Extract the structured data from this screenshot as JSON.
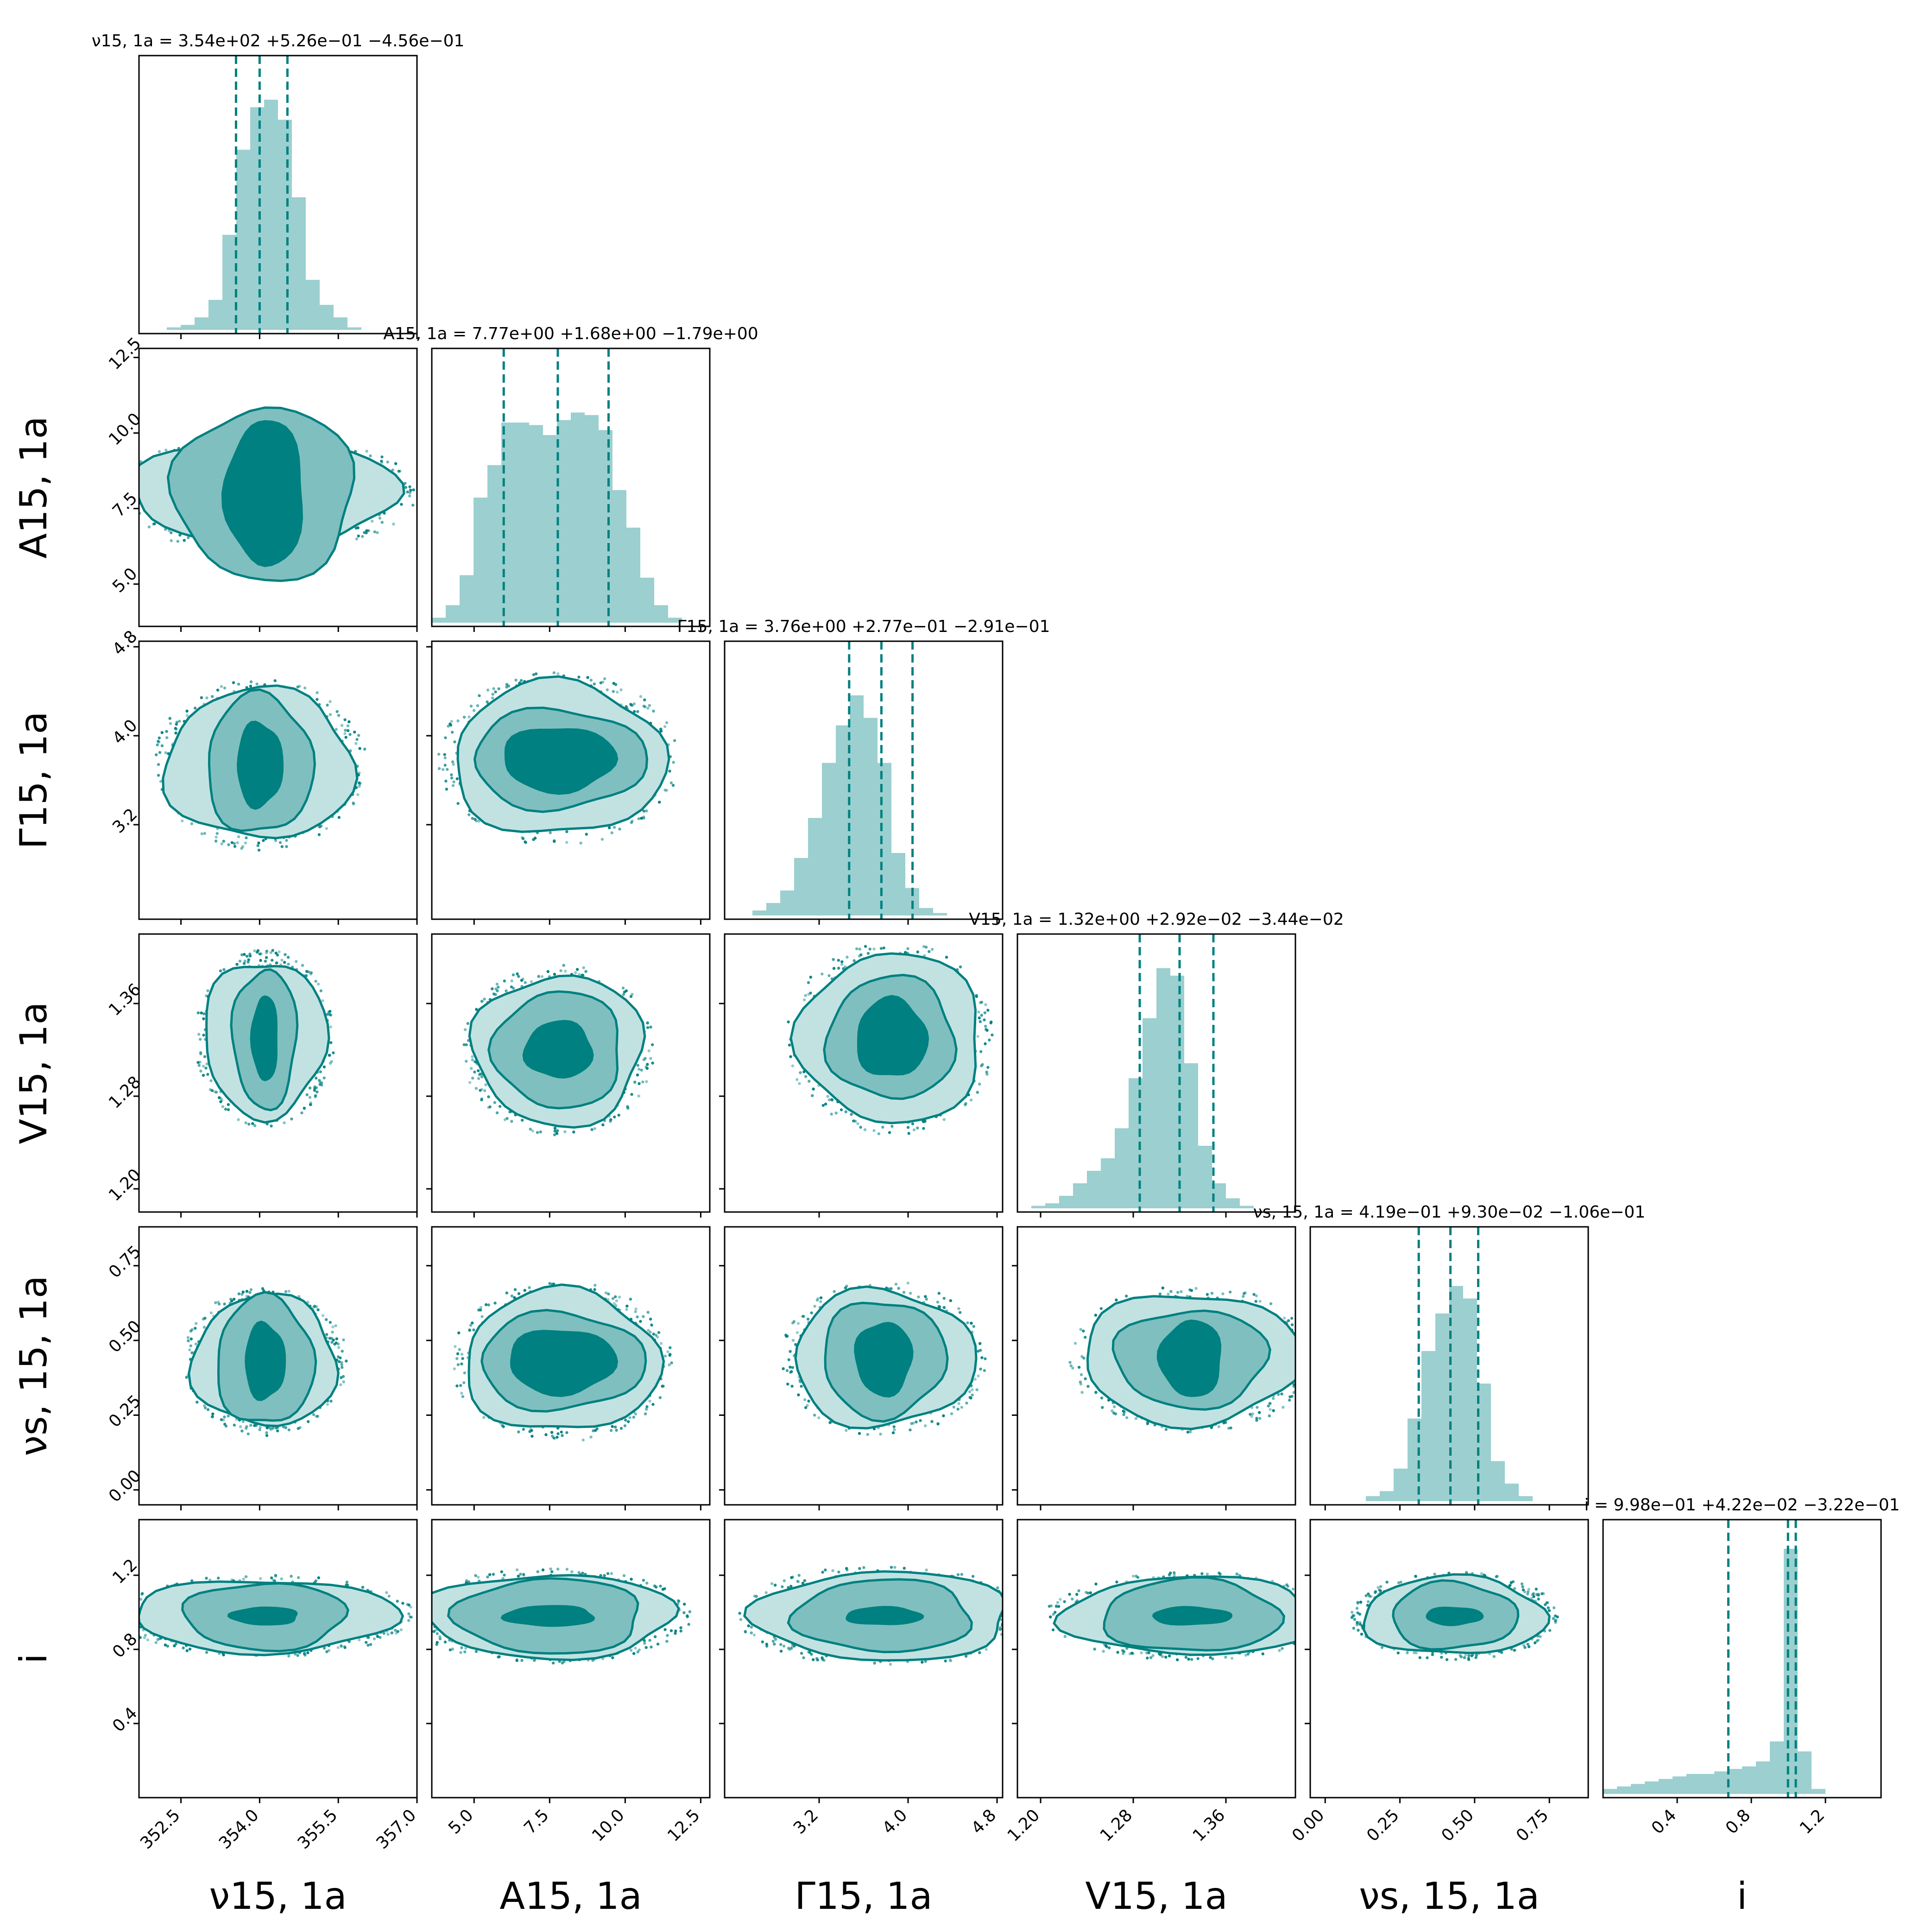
{
  "chart_data": {
    "type": "corner",
    "colors": {
      "accent": "#008080",
      "hist": "#9ccfcf",
      "level1": "#c2e2e2",
      "level2": "#80bfbf",
      "level3": "#008080"
    },
    "params": [
      {
        "id": "nu",
        "label": "ν15, 1a",
        "range": [
          351.7,
          357.0
        ],
        "ticks": [
          "352.5",
          "354.0",
          "355.5",
          "357.0"
        ],
        "tick_values": [
          352.5,
          354.0,
          355.5,
          357.0
        ],
        "title": "ν15, 1a = 3.54e+02 +5.26e−01 −4.56e−01",
        "median": 354.0,
        "lo": 353.55,
        "hi": 354.53
      },
      {
        "id": "A",
        "label": "A15, 1a",
        "range": [
          3.6,
          12.8
        ],
        "ticks": [
          "5.0",
          "7.5",
          "10.0",
          "12.5"
        ],
        "tick_values": [
          5.0,
          7.5,
          10.0,
          12.5
        ],
        "title": "A15, 1a = 7.77e+00 +1.68e+00 −1.79e+00",
        "median": 7.77,
        "lo": 5.98,
        "hi": 9.45
      },
      {
        "id": "Gamma",
        "label": "Γ15, 1a",
        "range": [
          2.35,
          4.85
        ],
        "ticks": [
          "3.2",
          "4.0",
          "4.8"
        ],
        "tick_values": [
          3.2,
          4.0,
          4.8
        ],
        "title": "Γ15, 1a = 3.76e+00 +2.77e−01 −2.91e−01",
        "median": 3.76,
        "lo": 3.47,
        "hi": 4.04
      },
      {
        "id": "V",
        "label": "V15, 1a",
        "range": [
          1.18,
          1.42
        ],
        "ticks": [
          "1.20",
          "1.28",
          "1.36"
        ],
        "tick_values": [
          1.2,
          1.28,
          1.36
        ],
        "title": "V15, 1a = 1.32e+00 +2.92e−02 −3.44e−02",
        "median": 1.32,
        "lo": 1.2856,
        "hi": 1.3492
      },
      {
        "id": "nus",
        "label": "νs, 15, 1a",
        "range": [
          -0.05,
          0.88
        ],
        "ticks": [
          "0.00",
          "0.25",
          "0.50",
          "0.75"
        ],
        "tick_values": [
          0.0,
          0.25,
          0.5,
          0.75
        ],
        "title": "νs, 15, 1a = 4.19e−01 +9.30e−02 −1.06e−01",
        "median": 0.419,
        "lo": 0.313,
        "hi": 0.512
      },
      {
        "id": "i",
        "label": "i",
        "range": [
          0.0,
          1.5
        ],
        "ticks": [
          "0.4",
          "0.8",
          "1.2"
        ],
        "tick_values": [
          0.4,
          0.8,
          1.2
        ],
        "title": "i = 9.98e−01 +4.22e−02 −3.22e−01",
        "median": 0.998,
        "lo": 0.676,
        "hi": 1.04
      }
    ],
    "histograms": [
      {
        "param": "nu",
        "edges_start": 351.7,
        "bin_width": 0.265,
        "counts": [
          0,
          0,
          0.01,
          0.02,
          0.05,
          0.12,
          0.38,
          0.72,
          0.89,
          0.92,
          0.84,
          0.53,
          0.2,
          0.1,
          0.05,
          0.01,
          0,
          0,
          0,
          0
        ]
      },
      {
        "param": "A",
        "edges_start": 3.6,
        "bin_width": 0.46,
        "counts": [
          0.02,
          0.07,
          0.19,
          0.5,
          0.63,
          0.8,
          0.8,
          0.79,
          0.75,
          0.81,
          0.84,
          0.83,
          0.77,
          0.53,
          0.38,
          0.18,
          0.07,
          0.02,
          0,
          0
        ]
      },
      {
        "param": "Gamma",
        "edges_start": 2.35,
        "bin_width": 0.125,
        "counts": [
          0,
          0,
          0.02,
          0.05,
          0.1,
          0.23,
          0.39,
          0.61,
          0.76,
          0.88,
          0.79,
          0.61,
          0.25,
          0.11,
          0.03,
          0.01,
          0,
          0,
          0,
          0
        ]
      },
      {
        "param": "V",
        "edges_start": 1.18,
        "bin_width": 0.012,
        "counts": [
          0,
          0.01,
          0.02,
          0.05,
          0.1,
          0.15,
          0.2,
          0.32,
          0.52,
          0.76,
          0.96,
          0.93,
          0.58,
          0.25,
          0.1,
          0.04,
          0.01,
          0,
          0,
          0
        ]
      },
      {
        "param": "nus",
        "edges_start": -0.05,
        "bin_width": 0.0465,
        "counts": [
          0,
          0,
          0,
          0,
          0.02,
          0.04,
          0.13,
          0.33,
          0.6,
          0.75,
          0.86,
          0.81,
          0.47,
          0.16,
          0.07,
          0.02,
          0,
          0,
          0,
          0
        ]
      },
      {
        "param": "i",
        "edges_start": 0.0,
        "bin_width": 0.075,
        "counts": [
          0.02,
          0.03,
          0.04,
          0.05,
          0.06,
          0.07,
          0.08,
          0.08,
          0.09,
          0.1,
          0.11,
          0.13,
          0.21,
          0.98,
          0.17,
          0.02,
          0,
          0,
          0,
          0
        ]
      }
    ],
    "pairs": [
      {
        "x": "nu",
        "y": "A",
        "center": [
          354.1,
          8.0
        ],
        "levels": [
          [
            0.27,
            0.41,
            0.96,
            0.38
          ],
          [
            0.46,
            0.68,
            0.65,
            0.62
          ],
          [
            0.75,
            0.95,
            0.28,
            0.52
          ]
        ]
      },
      {
        "x": "nu",
        "y": "Gamma",
        "center": [
          354.0,
          3.74
        ],
        "levels": [
          [
            0.25,
            0.46,
            0.68,
            0.54
          ],
          [
            0.48,
            0.74,
            0.38,
            0.5
          ],
          [
            0.73,
            1.0,
            0.16,
            0.3
          ]
        ]
      },
      {
        "x": "nu",
        "y": "V",
        "center": [
          354.1,
          1.33
        ],
        "levels": [
          [
            0.24,
            0.44,
            0.44,
            0.56
          ],
          [
            0.45,
            0.76,
            0.23,
            0.5
          ],
          [
            0.75,
            0.97,
            0.09,
            0.3
          ]
        ]
      },
      {
        "x": "nu",
        "y": "nus",
        "center": [
          354.1,
          0.43
        ],
        "levels": [
          [
            0.26,
            0.47,
            0.52,
            0.47
          ],
          [
            0.47,
            0.75,
            0.35,
            0.46
          ],
          [
            0.72,
            0.98,
            0.14,
            0.27
          ]
        ]
      },
      {
        "x": "nu",
        "y": "i",
        "center": [
          354.1,
          0.98
        ],
        "levels": [
          [
            0.26,
            0.47,
            0.95,
            0.26
          ],
          [
            0.5,
            0.76,
            0.58,
            0.24
          ],
          [
            0.75,
            1.0,
            0.24,
            0.06
          ]
        ]
      },
      {
        "x": "A",
        "y": "Gamma",
        "center": [
          7.8,
          3.79
        ],
        "levels": [
          [
            0.24,
            0.44,
            0.76,
            0.55
          ],
          [
            0.45,
            0.72,
            0.62,
            0.36
          ],
          [
            0.73,
            0.98,
            0.4,
            0.23
          ]
        ]
      },
      {
        "x": "A",
        "y": "V",
        "center": [
          7.8,
          1.32
        ],
        "levels": [
          [
            0.23,
            0.43,
            0.61,
            0.54
          ],
          [
            0.44,
            0.71,
            0.46,
            0.42
          ],
          [
            0.73,
            0.99,
            0.24,
            0.2
          ]
        ]
      },
      {
        "x": "A",
        "y": "nus",
        "center": [
          7.9,
          0.43
        ],
        "levels": [
          [
            0.25,
            0.46,
            0.7,
            0.51
          ],
          [
            0.47,
            0.73,
            0.59,
            0.35
          ],
          [
            0.73,
            0.97,
            0.38,
            0.23
          ]
        ]
      },
      {
        "x": "A",
        "y": "i",
        "center": [
          7.5,
          0.98
        ],
        "levels": [
          [
            0.25,
            0.47,
            0.9,
            0.3
          ],
          [
            0.48,
            0.76,
            0.67,
            0.27
          ],
          [
            0.73,
            0.99,
            0.32,
            0.07
          ]
        ]
      },
      {
        "x": "Gamma",
        "y": "V",
        "center": [
          3.85,
          1.33
        ],
        "levels": [
          [
            0.25,
            0.46,
            0.66,
            0.61
          ],
          [
            0.47,
            0.74,
            0.46,
            0.44
          ],
          [
            0.74,
            0.98,
            0.25,
            0.28
          ]
        ]
      },
      {
        "x": "Gamma",
        "y": "nus",
        "center": [
          3.78,
          0.44
        ],
        "levels": [
          [
            0.26,
            0.48,
            0.65,
            0.49
          ],
          [
            0.48,
            0.74,
            0.44,
            0.42
          ],
          [
            0.75,
            0.99,
            0.2,
            0.26
          ]
        ]
      },
      {
        "x": "Gamma",
        "y": "i",
        "center": [
          3.78,
          0.98
        ],
        "levels": [
          [
            0.25,
            0.47,
            0.92,
            0.32
          ],
          [
            0.48,
            0.76,
            0.64,
            0.26
          ],
          [
            0.73,
            0.99,
            0.27,
            0.06
          ]
        ]
      },
      {
        "x": "V",
        "y": "nus",
        "center": [
          1.33,
          0.44
        ],
        "levels": [
          [
            0.25,
            0.47,
            0.78,
            0.47
          ],
          [
            0.48,
            0.75,
            0.55,
            0.35
          ],
          [
            0.75,
            0.98,
            0.22,
            0.27
          ]
        ]
      },
      {
        "x": "V",
        "y": "i",
        "center": [
          1.33,
          0.98
        ],
        "levels": [
          [
            0.26,
            0.47,
            0.92,
            0.28
          ],
          [
            0.47,
            0.77,
            0.64,
            0.26
          ],
          [
            0.74,
            0.99,
            0.28,
            0.06
          ]
        ]
      },
      {
        "x": "nus",
        "y": "i",
        "center": [
          0.43,
          0.98
        ],
        "levels": [
          [
            0.25,
            0.47,
            0.66,
            0.28
          ],
          [
            0.47,
            0.76,
            0.45,
            0.24
          ],
          [
            0.74,
            0.99,
            0.2,
            0.06
          ]
        ]
      }
    ]
  }
}
